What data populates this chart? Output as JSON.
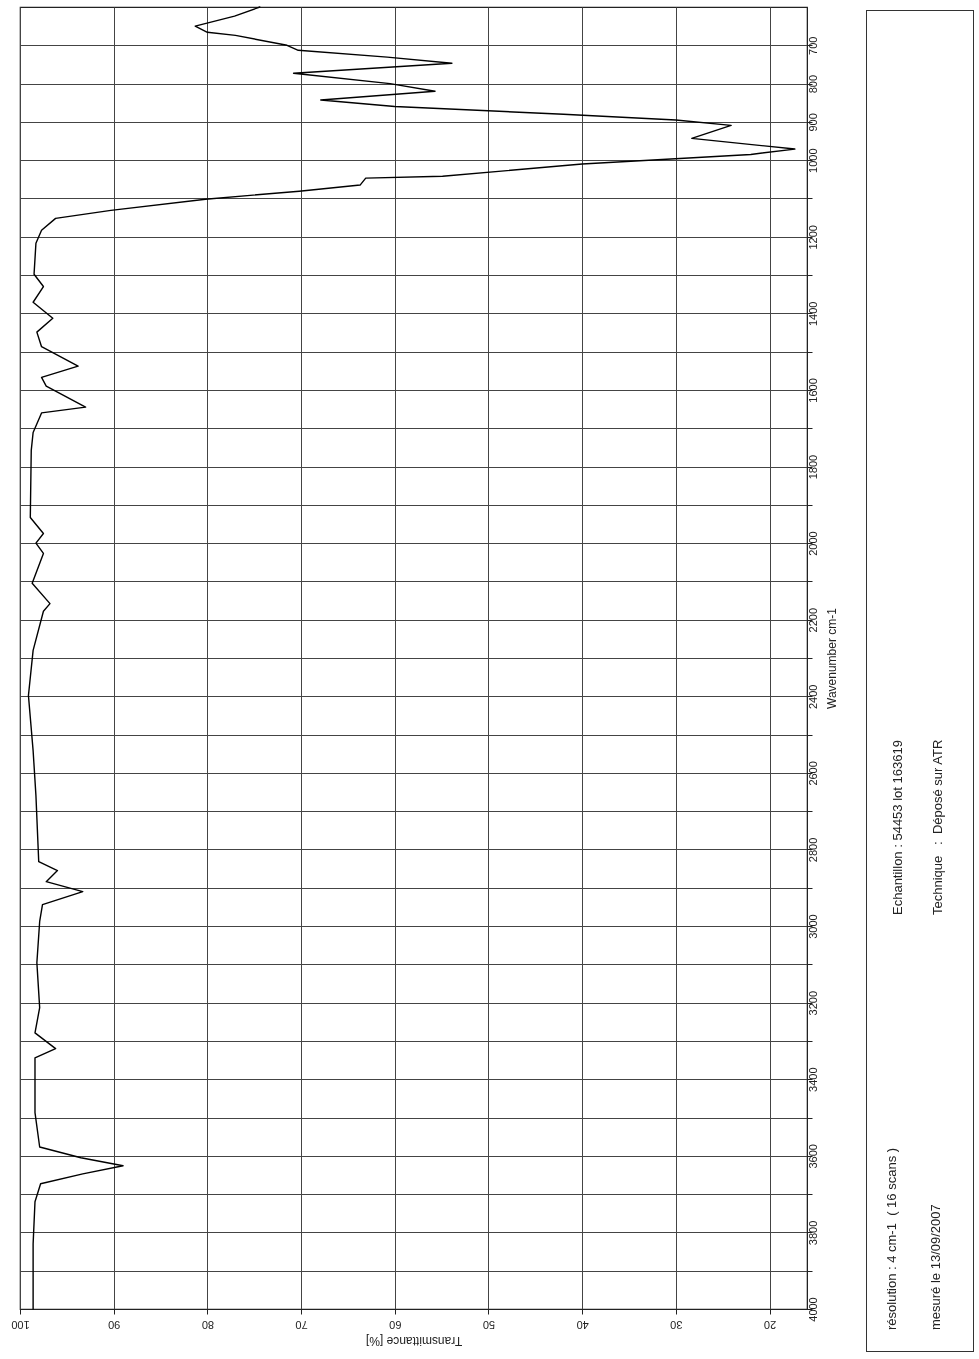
{
  "chart_data": {
    "type": "line",
    "xlabel": "Transmittance [%]",
    "ylabel": "Wavenumber cm-1",
    "xlim": [
      100,
      16
    ],
    "ylim": [
      4000,
      600
    ],
    "xticks": [
      100,
      90,
      80,
      70,
      60,
      50,
      40,
      30,
      20
    ],
    "yticks": [
      700,
      800,
      900,
      1000,
      {
        "value": 1100,
        "label": null
      },
      1200,
      {
        "value": 1300,
        "label": null
      },
      1400,
      {
        "value": 1500,
        "label": null
      },
      1600,
      {
        "value": 1700,
        "label": null
      },
      1800,
      {
        "value": 1900,
        "label": null
      },
      2000,
      {
        "value": 2100,
        "label": null
      },
      2200,
      {
        "value": 2300,
        "label": null
      },
      2400,
      {
        "value": 2500,
        "label": null
      },
      2600,
      {
        "value": 2700,
        "label": null
      },
      2800,
      {
        "value": 2900,
        "label": null
      },
      3000,
      {
        "value": 3100,
        "label": null
      },
      3200,
      {
        "value": 3300,
        "label": null
      },
      3400,
      {
        "value": 3500,
        "label": null
      },
      3600,
      {
        "value": 3700,
        "label": null
      },
      3800,
      {
        "value": 3900,
        "label": null
      },
      4000
    ],
    "grid": true,
    "line_style": "solid",
    "series": [
      {
        "color": "#000000",
        "x": [
          74.4,
          77.1,
          81.3,
          80.0,
          77.0,
          71.5,
          70.3,
          60.8,
          53.9,
          70.8,
          60.5,
          55.7,
          67.9,
          60.0,
          42.0,
          30.0,
          24.1,
          28.3,
          17.3,
          22.0,
          40.0,
          54.9,
          63.1,
          63.7,
          70.2,
          80.2,
          90.3,
          96.2,
          97.7,
          98.3,
          98.5,
          97.5,
          98.6,
          96.5,
          98.2,
          97.7,
          93.8,
          97.7,
          97.2,
          93.0,
          97.7,
          98.6,
          98.8,
          98.9,
          97.5,
          98.3,
          97.5,
          98.7,
          96.8,
          97.5,
          98.6,
          99.1,
          98.6,
          98.3,
          98.0,
          96.0,
          97.2,
          93.3,
          97.6,
          97.9,
          98.2,
          97.9,
          98.4,
          96.2,
          98.4,
          98.4,
          97.9,
          93.5,
          89.0,
          93.3,
          97.8,
          98.4,
          98.6,
          98.6
        ],
        "values": [
          600,
          624,
          650,
          666,
          674,
          700,
          713,
          731,
          747,
          773,
          800,
          820,
          843,
          860,
          880,
          895,
          909,
          943,
          971,
          985,
          1010,
          1042,
          1047,
          1065,
          1081,
          1102,
          1131,
          1152,
          1183,
          1217,
          1298,
          1330,
          1371,
          1413,
          1449,
          1487,
          1538,
          1567,
          1590,
          1645,
          1660,
          1711,
          1758,
          1933,
          1975,
          2000,
          2027,
          2105,
          2158,
          2178,
          2280,
          2398,
          2542,
          2659,
          2832,
          2855,
          2884,
          2910,
          2944,
          2988,
          3096,
          3213,
          3279,
          3320,
          3344,
          3487,
          3577,
          3605,
          3626,
          3647,
          3673,
          3720,
          3830,
          4000
        ]
      }
    ],
    "annotations": [
      "résolution : 4 cm-1  ( 16 scans )",
      "mesuré le 13/09/2007",
      "Echantillon : 54453 lot 163619",
      "Technique   :  Déposé sur ATR"
    ]
  }
}
